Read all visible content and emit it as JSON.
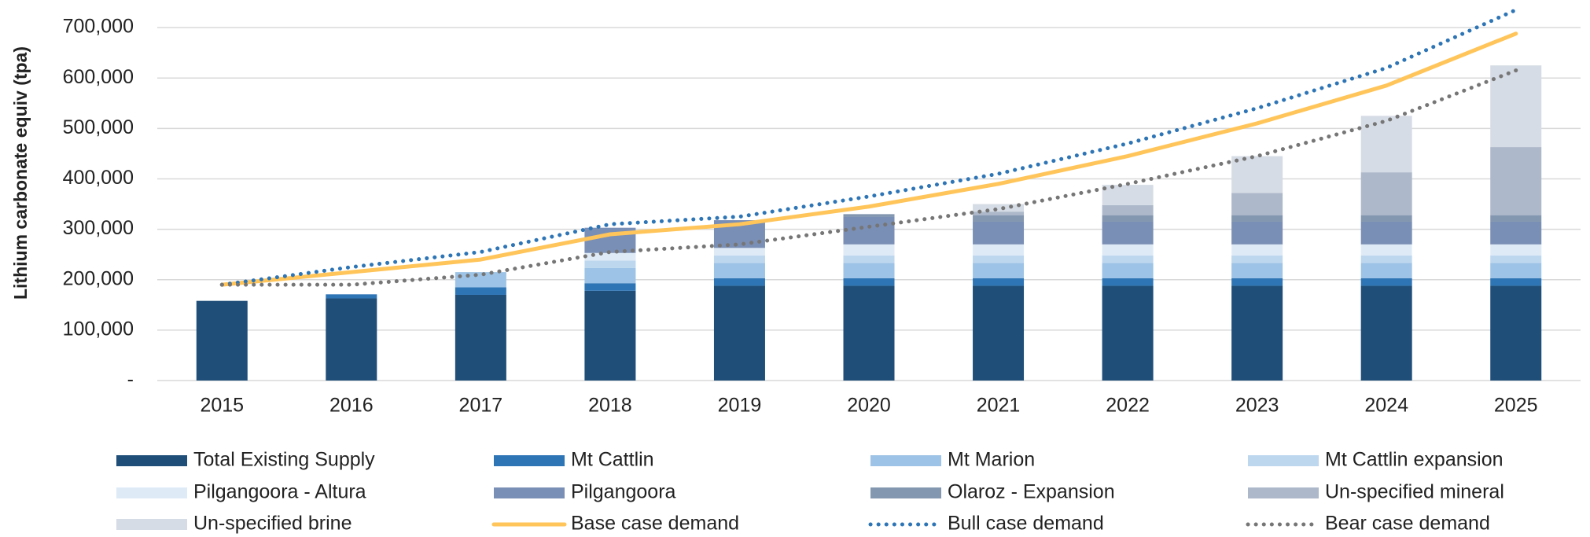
{
  "chart_data": {
    "type": "bar",
    "stacked": true,
    "y_label": "Lithium carbonate equiv (tpa)",
    "categories": [
      "2015",
      "2016",
      "2017",
      "2018",
      "2019",
      "2020",
      "2021",
      "2022",
      "2023",
      "2024",
      "2025"
    ],
    "ylim": [
      0,
      750000
    ],
    "yticks": [
      {
        "value": 0,
        "label": "-"
      },
      {
        "value": 100000,
        "label": "100,000"
      },
      {
        "value": 200000,
        "label": "200,000"
      },
      {
        "value": 300000,
        "label": "300,000"
      },
      {
        "value": 400000,
        "label": "400,000"
      },
      {
        "value": 500000,
        "label": "500,000"
      },
      {
        "value": 600000,
        "label": "600,000"
      },
      {
        "value": 700000,
        "label": "700,000"
      }
    ],
    "grid": true,
    "series": [
      {
        "name": "Total Existing Supply",
        "color": "#1f4e79",
        "values": [
          158000,
          163000,
          170000,
          178000,
          188000,
          188000,
          188000,
          188000,
          188000,
          188000,
          188000
        ]
      },
      {
        "name": "Mt Cattlin",
        "color": "#2e75b6",
        "values": [
          0,
          8000,
          15000,
          15000,
          15000,
          15000,
          15000,
          15000,
          15000,
          15000,
          15000
        ]
      },
      {
        "name": "Mt Marion",
        "color": "#9dc3e6",
        "values": [
          0,
          0,
          30000,
          30000,
          30000,
          30000,
          30000,
          30000,
          30000,
          30000,
          30000
        ]
      },
      {
        "name": "Mt Cattlin expansion",
        "color": "#bdd7ee",
        "values": [
          0,
          0,
          0,
          15000,
          15000,
          15000,
          15000,
          15000,
          15000,
          15000,
          15000
        ]
      },
      {
        "name": "Pilgangoora - Altura",
        "color": "#deebf7",
        "values": [
          0,
          0,
          0,
          15000,
          15000,
          22000,
          22000,
          22000,
          22000,
          22000,
          22000
        ]
      },
      {
        "name": "Pilgangoora",
        "color": "#7a8fb5",
        "values": [
          0,
          0,
          0,
          50000,
          55000,
          55000,
          45000,
          45000,
          45000,
          45000,
          45000
        ]
      },
      {
        "name": "Olaroz - Expansion",
        "color": "#8497b0",
        "values": [
          0,
          0,
          0,
          0,
          0,
          5000,
          13000,
          13000,
          13000,
          13000,
          13000
        ]
      },
      {
        "name": "Un-specified mineral",
        "color": "#adb9ca",
        "values": [
          0,
          0,
          0,
          0,
          0,
          0,
          7000,
          20000,
          44000,
          85000,
          135000
        ]
      },
      {
        "name": "Un-specified brine",
        "color": "#d6dce5",
        "values": [
          0,
          0,
          0,
          0,
          0,
          0,
          15000,
          40000,
          73000,
          112000,
          162000
        ]
      },
      {
        "name": "Base case demand",
        "color": "#ffc55a",
        "kind": "line",
        "line_style": "solid",
        "values": [
          190000,
          215000,
          240000,
          290000,
          310000,
          345000,
          390000,
          445000,
          510000,
          585000,
          688000
        ]
      },
      {
        "name": "Bull case demand",
        "color": "#2e75b6",
        "kind": "line",
        "line_style": "dotted",
        "values": [
          190000,
          225000,
          255000,
          310000,
          325000,
          365000,
          410000,
          470000,
          540000,
          620000,
          735000
        ]
      },
      {
        "name": "Bear case demand",
        "color": "#767676",
        "kind": "line",
        "line_style": "dotted",
        "values": [
          190000,
          190000,
          210000,
          255000,
          270000,
          305000,
          340000,
          390000,
          445000,
          515000,
          615000
        ]
      }
    ]
  }
}
